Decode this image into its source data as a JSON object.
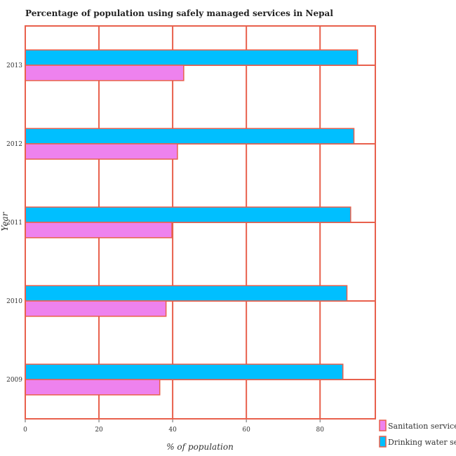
{
  "chart_data": {
    "type": "bar",
    "orientation": "horizontal",
    "title": "Percentage of population using safely managed services in Nepal",
    "xlabel": "% of population",
    "ylabel": "Year",
    "categories": [
      "2009",
      "2010",
      "2011",
      "2012",
      "2013"
    ],
    "xlim": [
      0,
      95
    ],
    "xticks": [
      0,
      20,
      40,
      60,
      80
    ],
    "grid": true,
    "legend_position": "bottom-right",
    "series": [
      {
        "name": "Sanitation services",
        "color": "#ee82ee",
        "values": [
          36.5,
          38.2,
          39.8,
          41.3,
          43.0
        ]
      },
      {
        "name": "Drinking water services",
        "color": "#00bfff",
        "values": [
          86.2,
          87.3,
          88.3,
          89.2,
          90.2
        ]
      }
    ]
  }
}
